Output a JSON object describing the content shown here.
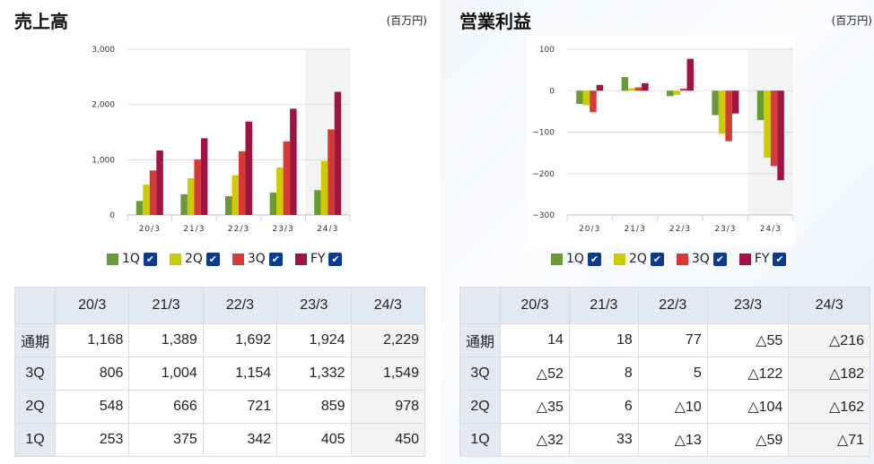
{
  "sales": {
    "title": "売上高",
    "unit": "(百万円)"
  },
  "profit": {
    "title": "営業利益",
    "unit": "(百万円)"
  },
  "legend": [
    {
      "label": "1Q",
      "color": "#6a9a35"
    },
    {
      "label": "2Q",
      "color": "#cccc00"
    },
    {
      "label": "3Q",
      "color": "#d63a36"
    },
    {
      "label": "FY",
      "color": "#a0143f"
    }
  ],
  "checkbox_color": "#0d3a8c",
  "table_headers": [
    "20/3",
    "21/3",
    "22/3",
    "23/3",
    "24/3"
  ],
  "row_labels": [
    "通期",
    "3Q",
    "2Q",
    "1Q"
  ],
  "sales_table": [
    [
      "1,168",
      "1,389",
      "1,692",
      "1,924",
      "2,229"
    ],
    [
      "806",
      "1,004",
      "1,154",
      "1,332",
      "1,549"
    ],
    [
      "548",
      "666",
      "721",
      "859",
      "978"
    ],
    [
      "253",
      "375",
      "342",
      "405",
      "450"
    ]
  ],
  "profit_table": [
    [
      "14",
      "18",
      "77",
      "△55",
      "△216"
    ],
    [
      "△52",
      "8",
      "5",
      "△122",
      "△182"
    ],
    [
      "△35",
      "6",
      "△10",
      "△104",
      "△162"
    ],
    [
      "△32",
      "33",
      "△13",
      "△59",
      "△71"
    ]
  ],
  "chart_data": [
    {
      "type": "bar",
      "title": "売上高",
      "categories": [
        "20/3",
        "21/3",
        "22/3",
        "23/3",
        "24/3"
      ],
      "ylim": [
        0,
        3000
      ],
      "yticks": [
        0,
        1000,
        2000,
        3000
      ],
      "ytick_labels": [
        "0",
        "1,000",
        "2,000",
        "3,000"
      ],
      "highlight_category": "24/3",
      "legend": "bottom",
      "series": [
        {
          "name": "1Q",
          "values": [
            253,
            375,
            342,
            405,
            450
          ]
        },
        {
          "name": "2Q",
          "values": [
            548,
            666,
            721,
            859,
            978
          ]
        },
        {
          "name": "3Q",
          "values": [
            806,
            1004,
            1154,
            1332,
            1549
          ]
        },
        {
          "name": "FY",
          "values": [
            1168,
            1389,
            1692,
            1924,
            2229
          ]
        }
      ]
    },
    {
      "type": "bar",
      "title": "営業利益",
      "categories": [
        "20/3",
        "21/3",
        "22/3",
        "23/3",
        "24/3"
      ],
      "ylim": [
        -300,
        100
      ],
      "yticks": [
        -300,
        -200,
        -100,
        0,
        100
      ],
      "ytick_labels": [
        "−300",
        "−200",
        "−100",
        "0",
        "100"
      ],
      "highlight_category": "24/3",
      "legend": "bottom",
      "series": [
        {
          "name": "1Q",
          "values": [
            -32,
            33,
            -13,
            -59,
            -71
          ]
        },
        {
          "name": "2Q",
          "values": [
            -35,
            6,
            -10,
            -104,
            -162
          ]
        },
        {
          "name": "3Q",
          "values": [
            -52,
            8,
            5,
            -122,
            -182
          ]
        },
        {
          "name": "FY",
          "values": [
            14,
            18,
            77,
            -55,
            -216
          ]
        }
      ]
    }
  ]
}
